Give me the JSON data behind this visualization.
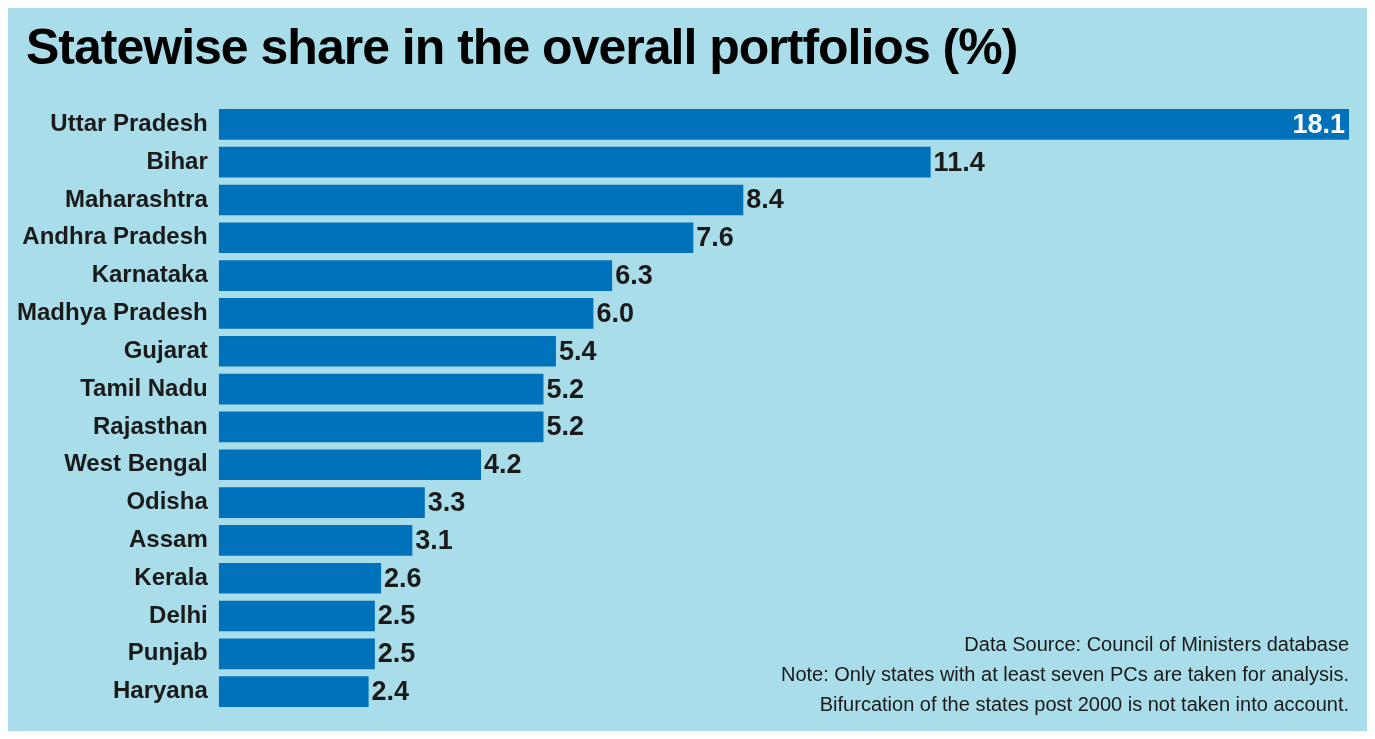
{
  "chart_data": {
    "type": "bar",
    "orientation": "horizontal",
    "title": "Statewise share in the overall portfolios (%)",
    "categories": [
      "Uttar Pradesh",
      "Bihar",
      "Maharashtra",
      "Andhra Pradesh",
      "Karnataka",
      "Madhya Pradesh",
      "Gujarat",
      "Tamil Nadu",
      "Rajasthan",
      "West Bengal",
      "Odisha",
      "Assam",
      "Kerala",
      "Delhi",
      "Punjab",
      "Haryana"
    ],
    "values": [
      18.1,
      11.4,
      8.4,
      7.6,
      6.3,
      6.0,
      5.4,
      5.2,
      5.2,
      4.2,
      3.3,
      3.1,
      2.6,
      2.5,
      2.5,
      2.4
    ],
    "value_labels": [
      "18.1",
      "11.4",
      "8.4",
      "7.6",
      "6.3",
      "6.0",
      "5.4",
      "5.2",
      "5.2",
      "4.2",
      "3.3",
      "3.1",
      "2.6",
      "2.5",
      "2.5",
      "2.4"
    ],
    "color": "#0072bc",
    "grid": false,
    "legend": false,
    "tick_labels": "y",
    "annotations": [
      "Data Source: Council of Ministers database",
      "Note: Only states with at least seven PCs are taken for analysis.",
      "Bifurcation of the states post 2000 is not taken into account."
    ]
  }
}
